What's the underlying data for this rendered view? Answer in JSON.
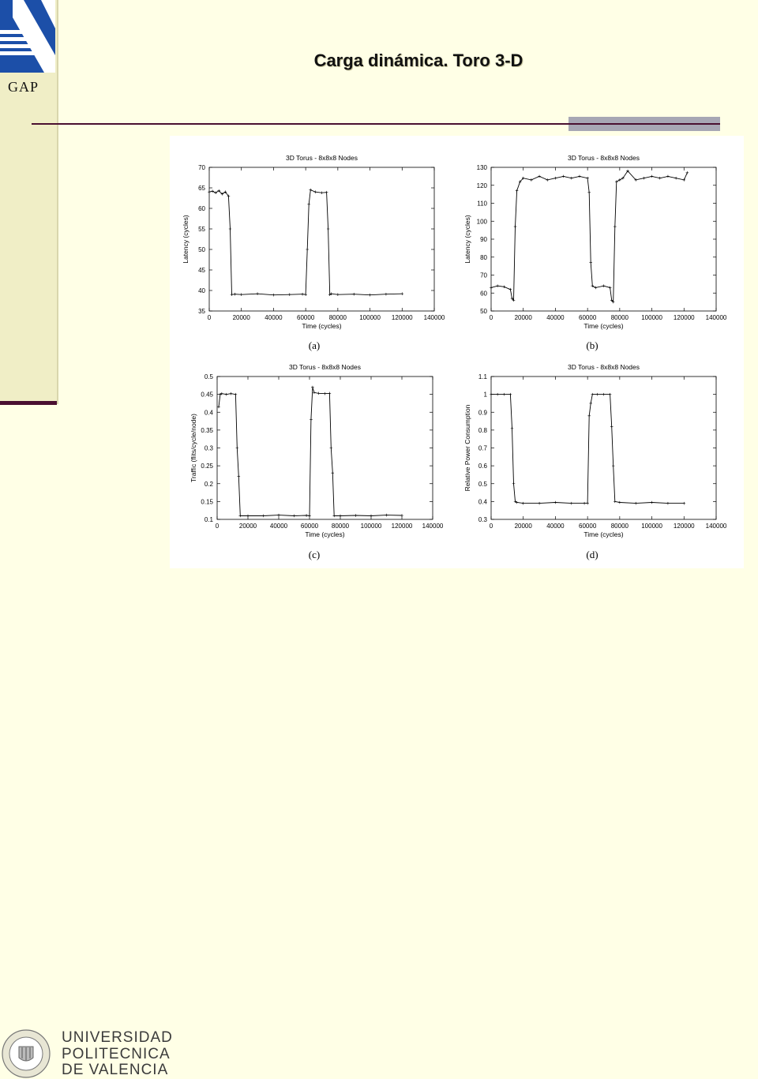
{
  "slide": {
    "title": "Carga dinámica. Toro 3-D",
    "gap_label": "GAP"
  },
  "footer": {
    "line1": "UNIVERSIDAD",
    "line2": "POLITECNICA",
    "line3": "DE VALENCIA",
    "seal_text": "UNIVERSIDAD POLITECNICA DE VALENCIA"
  },
  "colors": {
    "background": "#ffffe6",
    "sidebar": "#f0eec6",
    "logo_blue": "#1c4fa8",
    "rule": "#4a1030"
  },
  "chart_data": [
    {
      "type": "line",
      "panel": "(a)",
      "title": "3D Torus - 8x8x8 Nodes",
      "xlabel": "Time (cycles)",
      "ylabel": "Latency (cycles)",
      "xlim": [
        0,
        140000
      ],
      "ylim": [
        35,
        70
      ],
      "xticks": [
        0,
        20000,
        40000,
        60000,
        80000,
        100000,
        120000,
        140000
      ],
      "yticks": [
        35,
        40,
        45,
        50,
        55,
        60,
        65,
        70
      ],
      "x": [
        0,
        2000,
        4000,
        6000,
        8000,
        10000,
        12000,
        13000,
        14000,
        16000,
        20000,
        30000,
        40000,
        50000,
        58000,
        60000,
        61000,
        62000,
        63000,
        66000,
        70000,
        73000,
        74000,
        75000,
        76000,
        80000,
        90000,
        100000,
        110000,
        120000
      ],
      "y": [
        64,
        64.2,
        63.8,
        64.3,
        63.5,
        64,
        63,
        55,
        39,
        39.1,
        39,
        39.2,
        38.9,
        39,
        39.1,
        39,
        50,
        61,
        64.5,
        64,
        63.8,
        63.9,
        55,
        39,
        39.2,
        39,
        39.1,
        38.9,
        39.1,
        39.2
      ]
    },
    {
      "type": "line",
      "panel": "(b)",
      "title": "3D Torus - 8x8x8 Nodes",
      "xlabel": "Time (cycles)",
      "ylabel": "Latency (cycles)",
      "xlim": [
        0,
        140000
      ],
      "ylim": [
        50,
        130
      ],
      "xticks": [
        0,
        20000,
        40000,
        60000,
        80000,
        100000,
        120000,
        140000
      ],
      "yticks": [
        50,
        60,
        70,
        80,
        90,
        100,
        110,
        120,
        130
      ],
      "x": [
        0,
        4000,
        8000,
        12000,
        13000,
        14000,
        15000,
        16000,
        18000,
        20000,
        25000,
        30000,
        35000,
        40000,
        45000,
        50000,
        55000,
        60000,
        61000,
        62000,
        63000,
        65000,
        70000,
        74000,
        75000,
        76000,
        77000,
        78000,
        80000,
        82000,
        85000,
        90000,
        95000,
        100000,
        105000,
        110000,
        115000,
        120000,
        122000
      ],
      "y": [
        63,
        64,
        63.5,
        62,
        57,
        56,
        97,
        117,
        122,
        124,
        123,
        125,
        123,
        124,
        125,
        124,
        125,
        124,
        116,
        77,
        64,
        63,
        64,
        63,
        56,
        55,
        97,
        122,
        123,
        124,
        128,
        123,
        124,
        125,
        124,
        125,
        124,
        123,
        127
      ]
    },
    {
      "type": "line",
      "panel": "(c)",
      "title": "3D Torus - 8x8x8 Nodes",
      "xlabel": "Time (cycles)",
      "ylabel": "Traffic (flits/cycle/node)",
      "xlim": [
        0,
        140000
      ],
      "ylim": [
        0.1,
        0.5
      ],
      "xticks": [
        0,
        20000,
        40000,
        60000,
        80000,
        100000,
        120000,
        140000
      ],
      "yticks": [
        0.1,
        0.15,
        0.2,
        0.25,
        0.3,
        0.35,
        0.4,
        0.45,
        0.5
      ],
      "x": [
        1000,
        2000,
        3000,
        6000,
        9000,
        12000,
        13000,
        14000,
        15000,
        20000,
        30000,
        40000,
        50000,
        58000,
        60000,
        61000,
        62000,
        63000,
        66000,
        70000,
        73000,
        74000,
        75000,
        76000,
        80000,
        90000,
        100000,
        110000,
        120000
      ],
      "y": [
        0.415,
        0.45,
        0.452,
        0.45,
        0.452,
        0.45,
        0.3,
        0.22,
        0.11,
        0.11,
        0.11,
        0.112,
        0.11,
        0.111,
        0.11,
        0.38,
        0.47,
        0.455,
        0.453,
        0.452,
        0.453,
        0.3,
        0.23,
        0.11,
        0.11,
        0.111,
        0.11,
        0.112,
        0.111
      ]
    },
    {
      "type": "line",
      "panel": "(d)",
      "title": "3D Torus - 8x8x8 Nodes",
      "xlabel": "Time (cycles)",
      "ylabel": "Relative Power Consumption",
      "xlim": [
        0,
        140000
      ],
      "ylim": [
        0.3,
        1.1
      ],
      "xticks": [
        0,
        20000,
        40000,
        60000,
        80000,
        100000,
        120000,
        140000
      ],
      "yticks": [
        0.3,
        0.4,
        0.5,
        0.6,
        0.7,
        0.8,
        0.9,
        1,
        1.1
      ],
      "x": [
        0,
        4000,
        8000,
        12000,
        13000,
        14000,
        15000,
        16000,
        20000,
        30000,
        40000,
        50000,
        58000,
        60000,
        61000,
        62000,
        63000,
        66000,
        70000,
        74000,
        75000,
        76000,
        77000,
        80000,
        90000,
        100000,
        110000,
        120000
      ],
      "y": [
        1,
        1,
        1,
        1,
        0.81,
        0.5,
        0.4,
        0.395,
        0.39,
        0.39,
        0.395,
        0.39,
        0.39,
        0.39,
        0.88,
        0.95,
        1,
        1,
        1,
        1,
        0.82,
        0.6,
        0.4,
        0.395,
        0.39,
        0.395,
        0.39,
        0.39
      ]
    }
  ]
}
